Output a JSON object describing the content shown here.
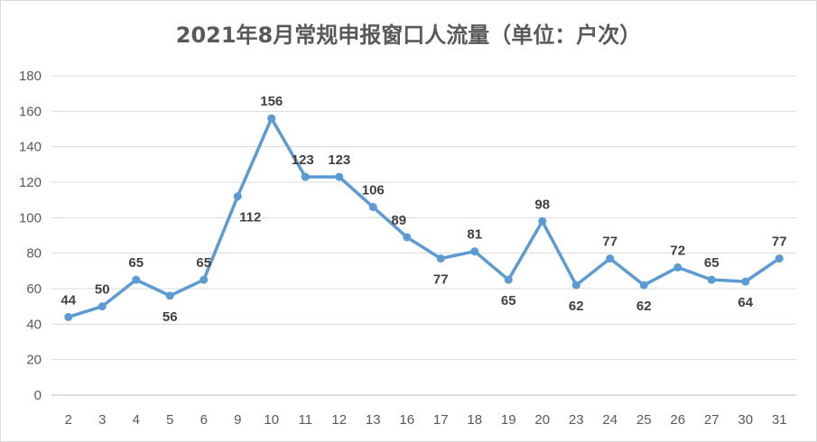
{
  "chart_data": {
    "type": "line",
    "title": "2021年8月常规申报窗口人流量（单位：户次）",
    "categories": [
      "2",
      "3",
      "4",
      "5",
      "6",
      "9",
      "10",
      "11",
      "12",
      "13",
      "16",
      "17",
      "18",
      "19",
      "20",
      "23",
      "24",
      "25",
      "26",
      "27",
      "30",
      "31"
    ],
    "series": [
      {
        "values": [
          44,
          50,
          65,
          56,
          65,
          112,
          156,
          123,
          123,
          106,
          89,
          77,
          81,
          65,
          98,
          62,
          77,
          62,
          72,
          65,
          64,
          77
        ]
      }
    ],
    "ylim": [
      0,
      180
    ],
    "yticks": [
      0,
      20,
      40,
      60,
      80,
      100,
      120,
      140,
      160,
      180
    ],
    "grid": true,
    "legend": "none",
    "data_labels": true,
    "line_color": "#5b9bd5"
  }
}
